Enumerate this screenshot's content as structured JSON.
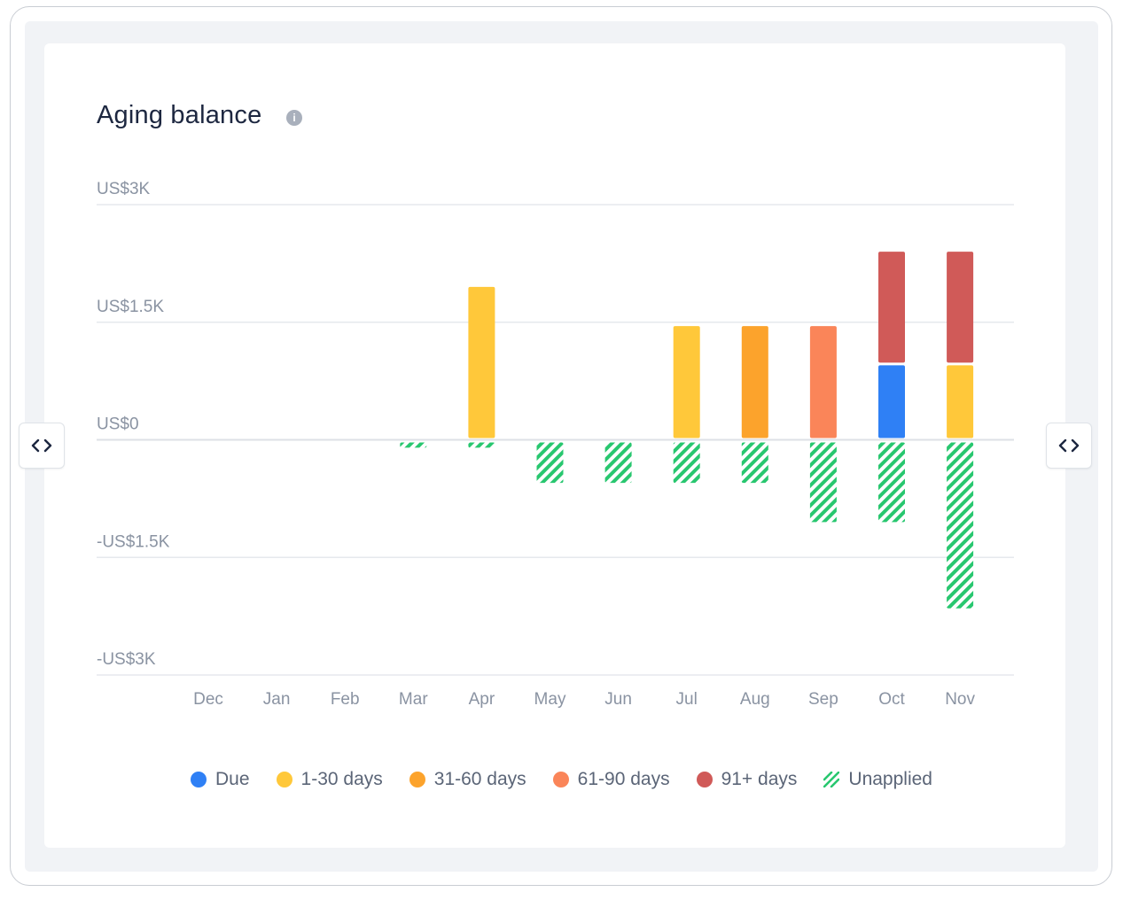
{
  "card": {
    "title": "Aging balance"
  },
  "icons": {
    "info": "info-icon",
    "nav": "code-brackets-icon"
  },
  "chart_data": {
    "type": "bar",
    "stacked": true,
    "title": "Aging balance",
    "categories": [
      "Dec",
      "Jan",
      "Feb",
      "Mar",
      "Apr",
      "May",
      "Jun",
      "Jul",
      "Aug",
      "Sep",
      "Oct",
      "Nov"
    ],
    "y_ticks": [
      {
        "value": 3000,
        "label": "US$3K"
      },
      {
        "value": 1500,
        "label": "US$1.5K"
      },
      {
        "value": 0,
        "label": "US$0"
      },
      {
        "value": -1500,
        "label": "-US$1.5K"
      },
      {
        "value": -3000,
        "label": "-US$3K"
      }
    ],
    "ylim": [
      -3000,
      3000
    ],
    "grid": true,
    "legend_position": "bottom-center",
    "series": [
      {
        "name": "Due",
        "color": "#2f80f5",
        "hatched": false,
        "values": [
          0,
          0,
          0,
          0,
          0,
          0,
          0,
          0,
          0,
          0,
          950,
          0
        ]
      },
      {
        "name": "1-30 days",
        "color": "#ffc83a",
        "hatched": false,
        "values": [
          0,
          0,
          0,
          0,
          1950,
          0,
          0,
          1450,
          0,
          0,
          0,
          950
        ]
      },
      {
        "name": "31-60 days",
        "color": "#fca32c",
        "hatched": false,
        "values": [
          0,
          0,
          0,
          0,
          0,
          0,
          0,
          0,
          1450,
          0,
          0,
          0
        ]
      },
      {
        "name": "61-90 days",
        "color": "#fa8559",
        "hatched": false,
        "values": [
          0,
          0,
          0,
          0,
          0,
          0,
          0,
          0,
          0,
          1450,
          0,
          0
        ]
      },
      {
        "name": "91+ days",
        "color": "#d05a58",
        "hatched": false,
        "values": [
          0,
          0,
          0,
          0,
          0,
          0,
          0,
          0,
          0,
          0,
          1450,
          1450
        ]
      },
      {
        "name": "Unapplied",
        "color": "#28c76f",
        "hatched": true,
        "values": [
          0,
          0,
          0,
          -100,
          -100,
          -550,
          -550,
          -550,
          -550,
          -1050,
          -1050,
          -2150
        ]
      }
    ]
  }
}
